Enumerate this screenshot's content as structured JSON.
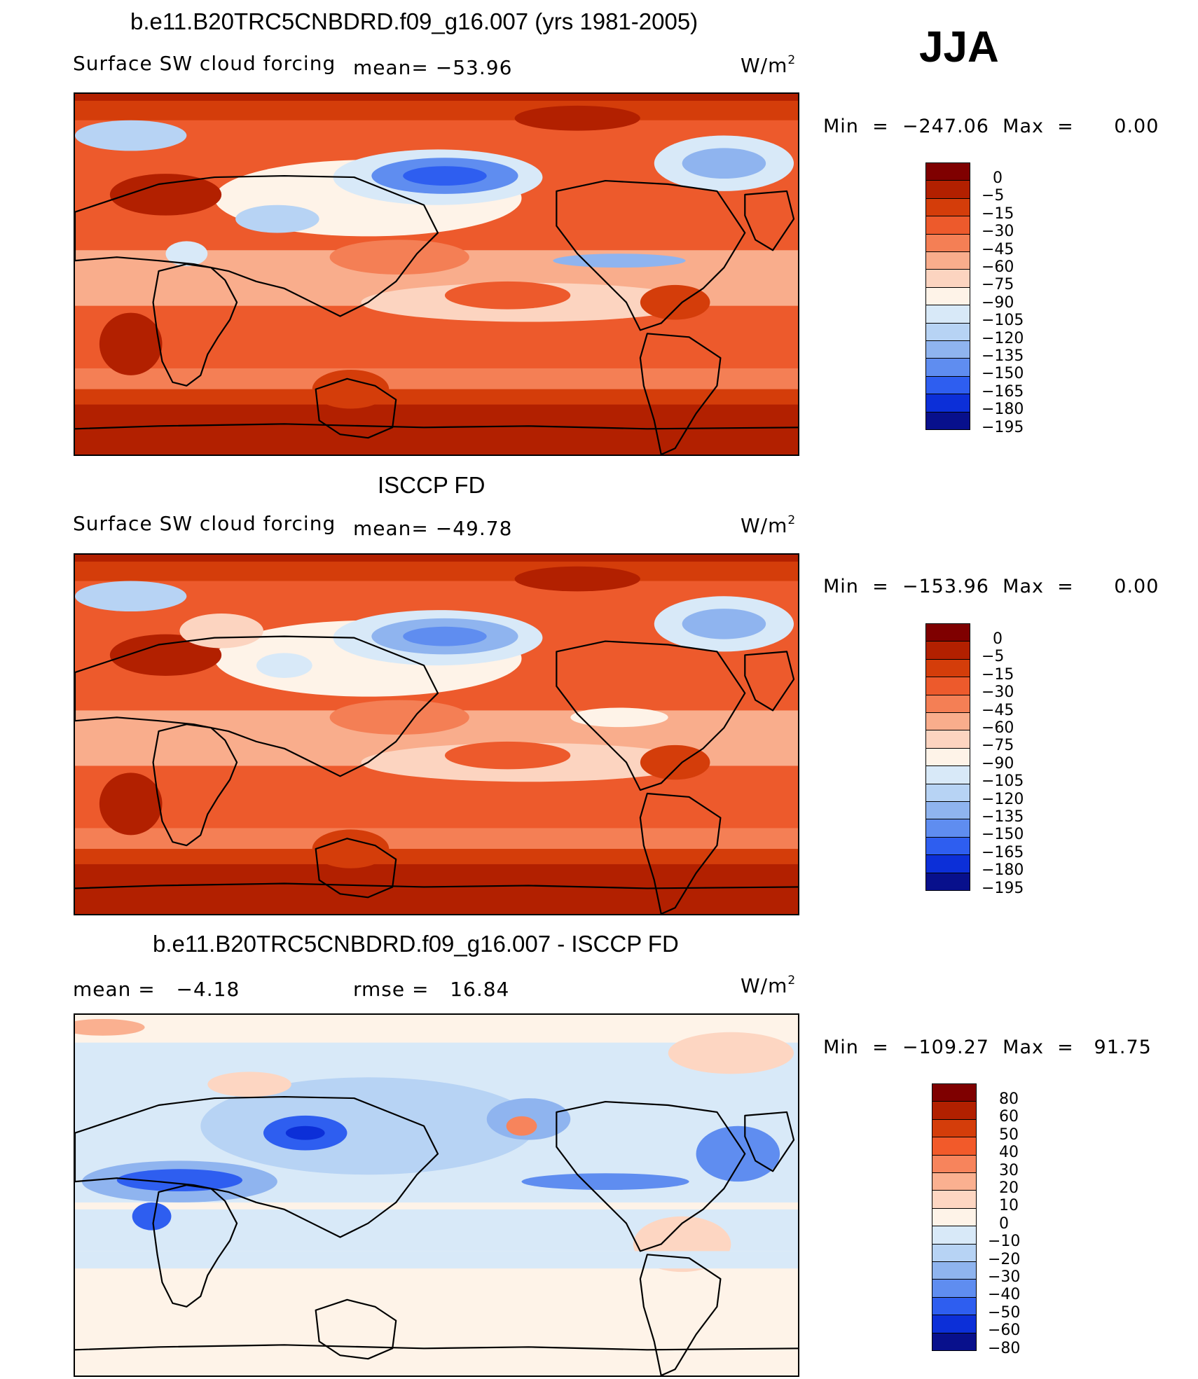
{
  "season": "JJA",
  "unit_base": "W/m",
  "unit_exp": "2",
  "panels": [
    {
      "title": "b.e11.B20TRC5CNBDRD.f09_g16.007 (yrs 1981-2005)",
      "left_label": "Surface SW cloud forcing",
      "stat_label": "mean=",
      "stat_value": "−53.96",
      "min_label": "Min",
      "min_value": "−247.06",
      "max_label": "Max",
      "max_value": "0.00",
      "colorbar_labels": [
        "0",
        "−5",
        "−15",
        "−30",
        "−45",
        "−60",
        "−75",
        "−90",
        "−105",
        "−120",
        "−135",
        "−150",
        "−165",
        "−180",
        "−195"
      ]
    },
    {
      "title": "ISCCP FD",
      "left_label": "Surface SW cloud forcing",
      "stat_label": "mean=",
      "stat_value": "−49.78",
      "min_label": "Min",
      "min_value": "−153.96",
      "max_label": "Max",
      "max_value": "0.00",
      "colorbar_labels": [
        "0",
        "−5",
        "−15",
        "−30",
        "−45",
        "−60",
        "−75",
        "−90",
        "−105",
        "−120",
        "−135",
        "−150",
        "−165",
        "−180",
        "−195"
      ]
    },
    {
      "title": "b.e11.B20TRC5CNBDRD.f09_g16.007 - ISCCP FD",
      "mean_label": "mean =",
      "mean_value": "−4.18",
      "rmse_label": "rmse =",
      "rmse_value": "16.84",
      "min_label": "Min",
      "min_value": "−109.27",
      "max_label": "Max",
      "max_value": "91.75",
      "colorbar_labels": [
        "80",
        "60",
        "50",
        "40",
        "30",
        "20",
        "10",
        "0",
        "−10",
        "−20",
        "−30",
        "−40",
        "−50",
        "−60",
        "−80"
      ]
    }
  ],
  "colors": {
    "abs_scale": [
      "#7f0000",
      "#b22000",
      "#d43d0a",
      "#ed5a2c",
      "#f47f55",
      "#f9ad8c",
      "#fcd4c0",
      "#fef3e8",
      "#d8e9f8",
      "#b7d3f4",
      "#8fb4ef",
      "#5f8df0",
      "#2e5ef0",
      "#0c2fd8",
      "#08108c"
    ],
    "diff_scale": [
      "#7f0000",
      "#b22000",
      "#d43d0a",
      "#f25a2a",
      "#f7845c",
      "#fab090",
      "#fdd6c2",
      "#fef3e8",
      "#d8e9f8",
      "#b7d3f4",
      "#8fb4ef",
      "#5f8df0",
      "#2e5ef0",
      "#0c2fd8",
      "#08108c"
    ],
    "land_outline": "#000000"
  },
  "chart_data": [
    {
      "type": "heatmap",
      "title": "b.e11.B20TRC5CNBDRD.f09_g16.007 (yrs 1981-2005)",
      "variable": "Surface SW cloud forcing",
      "units": "W/m2",
      "mean": -53.96,
      "min": -247.06,
      "max": 0.0,
      "contour_levels": [
        0,
        -5,
        -15,
        -30,
        -45,
        -60,
        -75,
        -90,
        -105,
        -120,
        -135,
        -150,
        -165,
        -180,
        -195
      ]
    },
    {
      "type": "heatmap",
      "title": "ISCCP FD",
      "variable": "Surface SW cloud forcing",
      "units": "W/m2",
      "mean": -49.78,
      "min": -153.96,
      "max": 0.0,
      "contour_levels": [
        0,
        -5,
        -15,
        -30,
        -45,
        -60,
        -75,
        -90,
        -105,
        -120,
        -135,
        -150,
        -165,
        -180,
        -195
      ]
    },
    {
      "type": "heatmap",
      "title": "b.e11.B20TRC5CNBDRD.f09_g16.007 - ISCCP FD",
      "units": "W/m2",
      "mean": -4.18,
      "rmse": 16.84,
      "min": -109.27,
      "max": 91.75,
      "contour_levels": [
        80,
        60,
        50,
        40,
        30,
        20,
        10,
        0,
        -10,
        -20,
        -30,
        -40,
        -50,
        -60,
        -80
      ]
    }
  ]
}
